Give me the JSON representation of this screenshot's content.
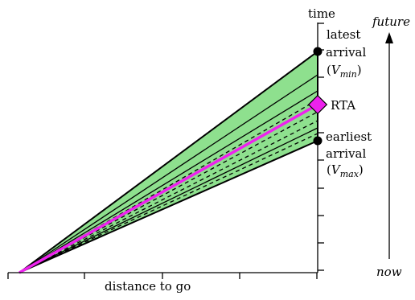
{
  "figure": {
    "axis_time_label": "time",
    "axis_distance_label": "distance to go",
    "future_label": "future",
    "now_label": "now",
    "latest_label_line1": "latest",
    "latest_label_line2": "arrival",
    "latest_open": "(",
    "latest_var": "V",
    "latest_sub": "min",
    "latest_close": ")",
    "earliest_label_line1": "earliest",
    "earliest_label_line2": "arrival",
    "earliest_open": "(",
    "earliest_var": "V",
    "earliest_sub": "max",
    "earliest_close": ")",
    "rta_label": "RTA"
  },
  "colors": {
    "cone_fill": "#8ee08e",
    "rta_color": "#ee22ee",
    "line_color": "#000000"
  }
}
